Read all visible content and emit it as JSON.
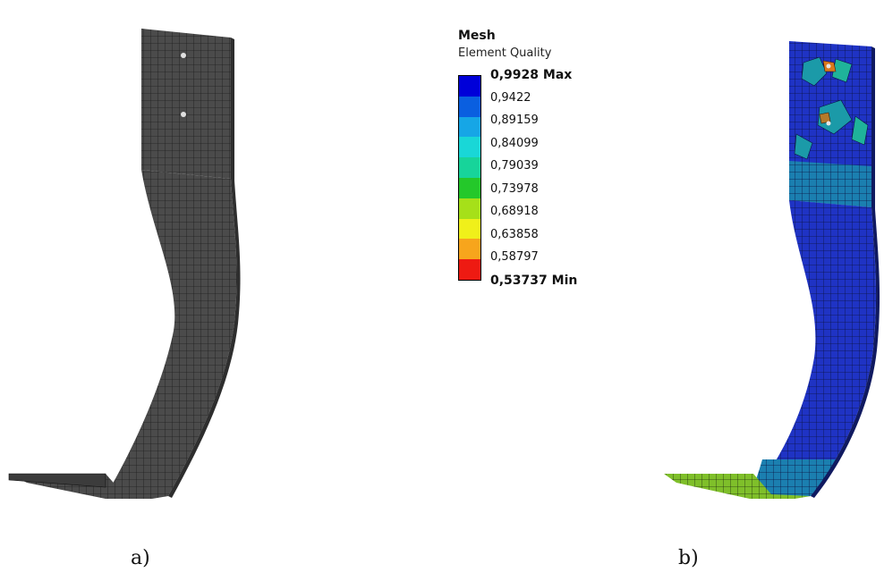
{
  "captions": {
    "a": "a)",
    "b": "b)"
  },
  "legend": {
    "title": "Mesh",
    "subtitle": "Element Quality",
    "max_label": "0,9928 Max",
    "min_label": "0,53737 Min",
    "ticks": [
      "0,9422",
      "0,89159",
      "0,84099",
      "0,79039",
      "0,73978",
      "0,68918",
      "0,63858",
      "0,58797"
    ],
    "band_colors": [
      "#0000d9",
      "#0a5fe0",
      "#16a6e6",
      "#19d7d7",
      "#17d49a",
      "#24c82a",
      "#a6e019",
      "#f0f01a",
      "#f7a51c",
      "#ee1a12"
    ]
  },
  "colors": {
    "mesh_gray": "#4a4a4a",
    "mesh_line": "#1a1a1a",
    "result_blue": "#1b2fc2",
    "result_teal": "#1b8fa0"
  }
}
